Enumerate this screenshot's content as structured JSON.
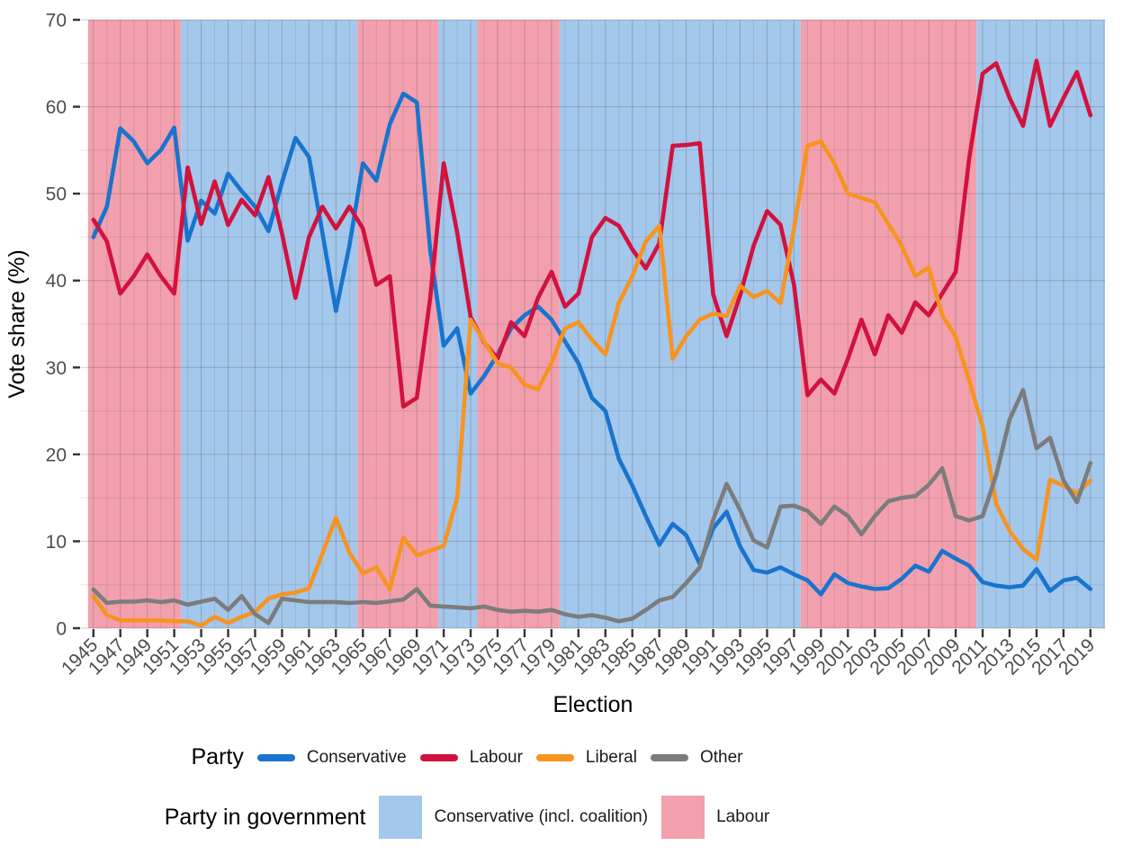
{
  "chart_data": {
    "type": "line",
    "xlabel": "Election",
    "ylabel": "Vote share (%)",
    "year_start": 1945,
    "year_end": 2019,
    "ylim": [
      0,
      70
    ],
    "yticks": [
      0,
      10,
      20,
      30,
      40,
      50,
      60,
      70
    ],
    "x_tick_labels": [
      1945,
      1947,
      1949,
      1951,
      1953,
      1955,
      1957,
      1959,
      1961,
      1963,
      1965,
      1967,
      1969,
      1971,
      1973,
      1975,
      1977,
      1979,
      1981,
      1983,
      1985,
      1987,
      1989,
      1991,
      1993,
      1995,
      1997,
      1999,
      2001,
      2003,
      2005,
      2007,
      2009,
      2011,
      2013,
      2015,
      2017,
      2019
    ],
    "grid": true,
    "legend_party_title": "Party",
    "series": [
      {
        "name": "Conservative",
        "color": "#1874CD",
        "values": [
          45,
          48.5,
          57.5,
          56,
          53.5,
          55,
          57.6,
          44.6,
          49.2,
          47.7,
          52.3,
          50.3,
          48.5,
          45.7,
          51.3,
          56.4,
          54.2,
          45.5,
          36.5,
          44,
          53.5,
          51.5,
          58,
          61.5,
          60.5,
          43.5,
          32.5,
          34.5,
          27,
          29,
          31.5,
          34.5,
          36,
          37,
          35.5,
          33,
          30.5,
          26.5,
          25,
          19.5,
          16.4,
          12.9,
          9.6,
          12,
          10.7,
          7.4,
          11.5,
          13.4,
          9.4,
          6.7,
          6.4,
          7,
          6.2,
          5.5,
          3.9,
          6.2,
          5.2,
          4.8,
          4.5,
          4.6,
          5.7,
          7.2,
          6.5,
          8.9,
          8,
          7.2,
          5.3,
          4.9,
          4.7,
          4.9,
          6.8,
          4.3,
          5.5,
          5.8,
          4.5
        ]
      },
      {
        "name": "Labour",
        "color": "#D2123E",
        "values": [
          47,
          44.5,
          38.5,
          40.5,
          43,
          40.5,
          38.5,
          53,
          46.5,
          51.4,
          46.4,
          49.3,
          47.5,
          51.9,
          45.4,
          38,
          45,
          48.5,
          46,
          48.5,
          46,
          39.5,
          40.5,
          25.5,
          26.5,
          38,
          53.5,
          45.5,
          35.8,
          32.9,
          31,
          35.2,
          33.6,
          38,
          41,
          37,
          38.5,
          45,
          47.2,
          46.3,
          43.6,
          41.4,
          44.3,
          55.5,
          55.6,
          55.8,
          38.4,
          33.6,
          38.3,
          44,
          48,
          46.4,
          39.5,
          26.8,
          28.6,
          27,
          31,
          35.5,
          31.5,
          36,
          34,
          37.5,
          36,
          38.5,
          41,
          54,
          63.8,
          65,
          61,
          57.8,
          65.3,
          57.8,
          61,
          64,
          59
        ]
      },
      {
        "name": "Liberal",
        "color": "#F79420",
        "values": [
          3.7,
          1.5,
          0.9,
          0.9,
          0.9,
          0.9,
          0.8,
          0.8,
          0.3,
          1.3,
          0.6,
          1.3,
          1.9,
          3.4,
          3.9,
          4.1,
          4.6,
          8.6,
          12.7,
          8.7,
          6.3,
          7,
          4.5,
          10.4,
          8.4,
          8.9,
          9.5,
          15,
          35.5,
          33,
          30.5,
          30,
          28,
          27.5,
          30.5,
          34.5,
          35.2,
          33.2,
          31.5,
          37.4,
          40.5,
          44.5,
          46.3,
          31,
          33.6,
          35.5,
          36.2,
          35.9,
          39.4,
          38.1,
          38.8,
          37.4,
          46,
          55.5,
          56,
          53.5,
          50,
          49.5,
          49,
          46.5,
          44,
          40.5,
          41.5,
          36,
          33.5,
          28.5,
          23.2,
          14.3,
          11.2,
          9.1,
          7.9,
          17.1,
          16.4,
          15.5,
          17
        ]
      },
      {
        "name": "Other",
        "color": "#7C7C7C",
        "values": [
          4.45,
          2.9,
          3.05,
          3.05,
          3.2,
          3,
          3.2,
          2.7,
          3.05,
          3.4,
          2.1,
          3.7,
          1.6,
          0.6,
          3.4,
          3.2,
          3,
          3,
          3,
          2.9,
          3,
          2.9,
          3.1,
          3.3,
          4.5,
          2.6,
          2.5,
          2.4,
          2.3,
          2.5,
          2.1,
          1.9,
          2,
          1.9,
          2.1,
          1.6,
          1.3,
          1.5,
          1.2,
          0.8,
          1.1,
          2.1,
          3.2,
          3.6,
          5.2,
          7,
          12.5,
          16.6,
          13.6,
          10.1,
          9.3,
          14,
          14.1,
          13.5,
          12,
          14,
          12.9,
          10.8,
          12.9,
          14.6,
          15,
          15.2,
          16.5,
          18.4,
          12.9,
          12.4,
          12.9,
          17.6,
          24,
          27.4,
          20.7,
          21.9,
          17,
          14.5,
          19
        ]
      }
    ],
    "government_periods": [
      {
        "party": "Labour",
        "from": 1944.6,
        "to": 1951.5
      },
      {
        "party": "Conservative",
        "from": 1951.5,
        "to": 1964.6
      },
      {
        "party": "Labour",
        "from": 1964.6,
        "to": 1970.6
      },
      {
        "party": "Conservative",
        "from": 1970.6,
        "to": 1973.5
      },
      {
        "party": "Labour",
        "from": 1973.5,
        "to": 1979.6
      },
      {
        "party": "Conservative",
        "from": 1979.6,
        "to": 1997.5
      },
      {
        "party": "Labour",
        "from": 1997.5,
        "to": 2010.55
      },
      {
        "party": "Conservative",
        "from": 2010.55,
        "to": 2020.1
      }
    ],
    "gov_colors": {
      "Conservative": "#A4C7EC",
      "Labour": "#F2A0AE"
    },
    "gov_legend": {
      "title": "Party in government",
      "items": [
        {
          "label": "Conservative (incl. coalition)",
          "color": "#A4C7EC"
        },
        {
          "label": "Labour",
          "color": "#F2A0AE"
        }
      ]
    }
  }
}
